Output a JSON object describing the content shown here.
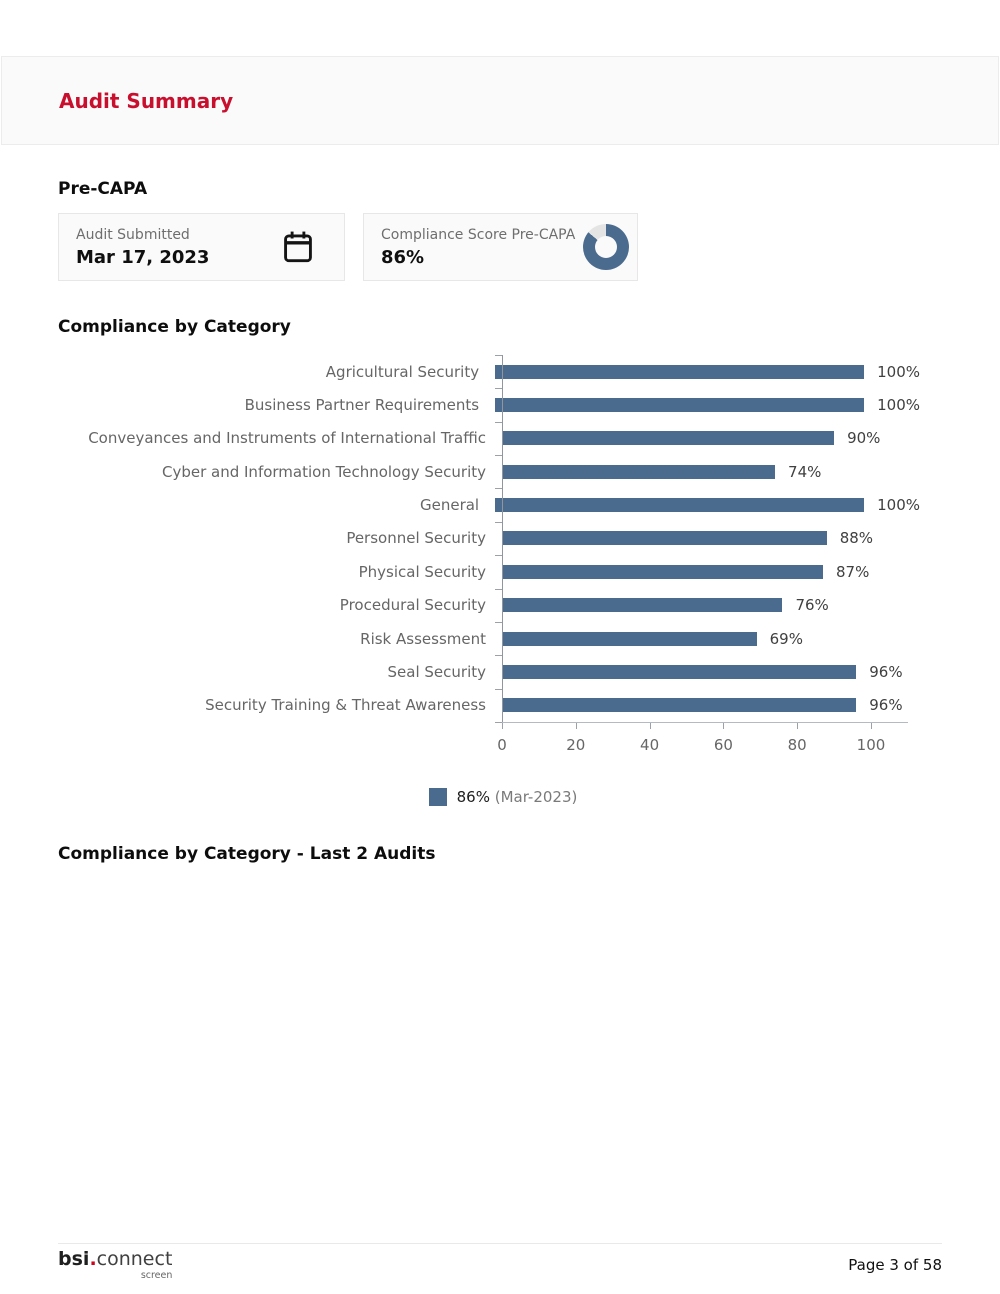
{
  "page": {
    "title": "Audit Summary",
    "footer": {
      "logo_bsi": "bsi",
      "logo_dot": ".",
      "logo_connect": "connect",
      "logo_screen": "screen",
      "page_label": "Page 3 of 58"
    }
  },
  "pre_capa": {
    "heading": "Pre-CAPA",
    "cards": [
      {
        "label": "Audit Submitted",
        "value": "Mar 17, 2023",
        "icon": "calendar-icon"
      },
      {
        "label": "Compliance Score Pre-CAPA",
        "value": "86%",
        "icon": "donut-chart-icon",
        "donut_percent": 86
      }
    ]
  },
  "sections": {
    "compliance_last2": "Compliance by Category - Last 2 Audits"
  },
  "chart_data": {
    "type": "bar",
    "orientation": "horizontal",
    "title": "Compliance by Category",
    "categories": [
      "Agricultural Security",
      "Business Partner Requirements",
      "Conveyances and Instruments of International Traffic",
      "Cyber and Information Technology Security",
      "General",
      "Personnel Security",
      "Physical Security",
      "Procedural Security",
      "Risk Assessment",
      "Seal Security",
      "Security Training & Threat Awareness"
    ],
    "values": [
      100,
      100,
      90,
      74,
      100,
      88,
      87,
      76,
      69,
      96,
      96
    ],
    "value_suffix": "%",
    "xticks": [
      0,
      20,
      40,
      60,
      80,
      100
    ],
    "xlim": [
      0,
      110
    ],
    "xlabel": "",
    "ylabel": "",
    "grid": false,
    "bar_color": "#4a6a8e",
    "legend": {
      "position": "bottom-center",
      "swatch_color": "#4a6a8e",
      "value": "86%",
      "period": "(Mar-2023)"
    }
  },
  "colors": {
    "title_red": "#c8102e",
    "bar_blue": "#4a6a8e",
    "donut_remainder": "#e4e4e4",
    "card_bg": "#fafafa",
    "label_gray": "#666666"
  }
}
